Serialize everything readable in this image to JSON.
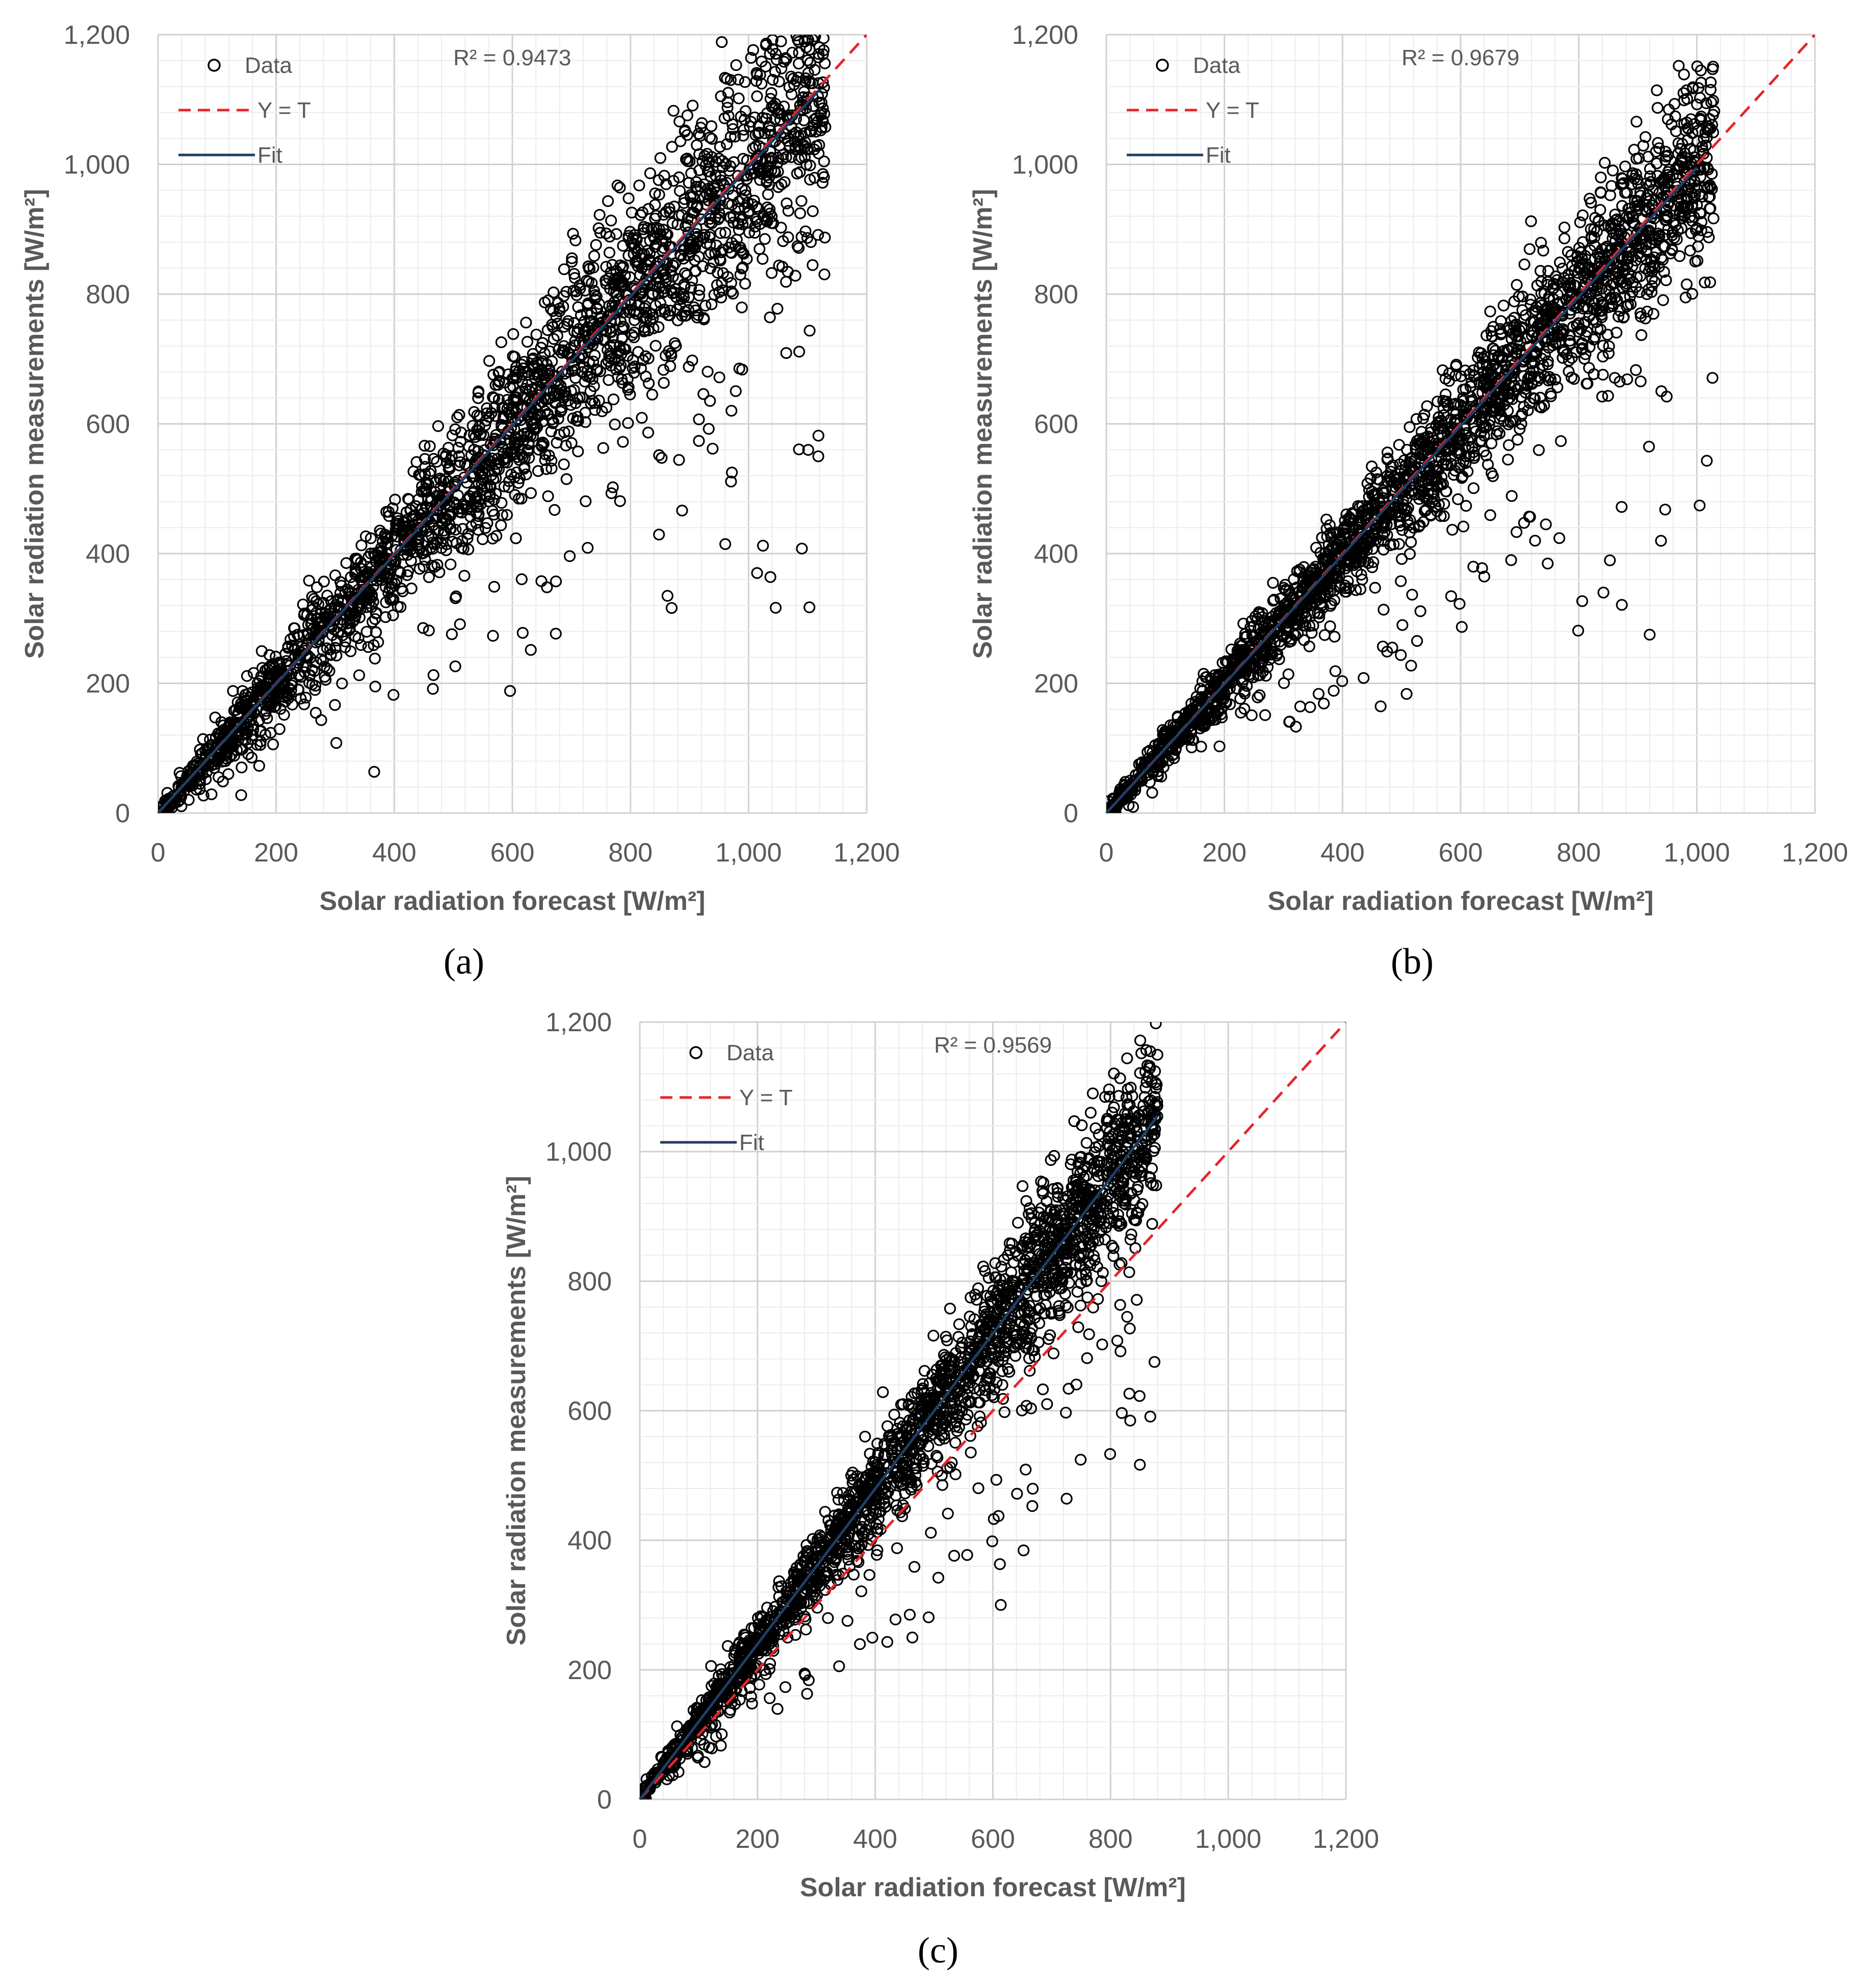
{
  "chart_data": [
    {
      "type": "scatter",
      "panel_label": "(a)",
      "xlabel": "Solar radiation forecast [W/m²]",
      "ylabel": "Solar radiation measurements [W/m²]",
      "xlim": [
        0,
        1200
      ],
      "ylim": [
        0,
        1200
      ],
      "xticks": [
        "0",
        "200",
        "400",
        "600",
        "800",
        "1,000",
        "1,200"
      ],
      "yticks": [
        "0",
        "200",
        "400",
        "600",
        "800",
        "1,000",
        "1,200"
      ],
      "grid": true,
      "legend_position": "top-left",
      "annotation": "R² = 0.9473",
      "series": [
        {
          "name": "Data",
          "marker": "circle-open",
          "color": "#000000",
          "x_max": 1130,
          "spread": 0.16,
          "n": 2400
        },
        {
          "name": "Y = T",
          "style": "dashed",
          "color": "#e3262b",
          "x": [
            0,
            1200
          ],
          "y": [
            0,
            1200
          ]
        },
        {
          "name": "Fit",
          "style": "solid",
          "color": "#1f3f66",
          "x": [
            0,
            1120
          ],
          "y": [
            0,
            1115
          ]
        }
      ]
    },
    {
      "type": "scatter",
      "panel_label": "(b)",
      "xlabel": "Solar radiation forecast [W/m²]",
      "ylabel": "Solar radiation measurements [W/m²]",
      "xlim": [
        0,
        1200
      ],
      "ylim": [
        0,
        1200
      ],
      "xticks": [
        "0",
        "200",
        "400",
        "600",
        "800",
        "1,000",
        "1,200"
      ],
      "yticks": [
        "0",
        "200",
        "400",
        "600",
        "800",
        "1,000",
        "1,200"
      ],
      "grid": true,
      "legend_position": "top-left",
      "annotation": "R² = 0.9679",
      "series": [
        {
          "name": "Data",
          "marker": "circle-open",
          "color": "#000000",
          "x_max": 1030,
          "spread": 0.12,
          "n": 2400
        },
        {
          "name": "Y = T",
          "style": "dashed",
          "color": "#e3262b",
          "x": [
            0,
            1200
          ],
          "y": [
            0,
            1200
          ]
        },
        {
          "name": "Fit",
          "style": "solid",
          "color": "#1f3f66",
          "x": [
            0,
            1000
          ],
          "y": [
            0,
            995
          ]
        }
      ]
    },
    {
      "type": "scatter",
      "panel_label": "(c)",
      "xlabel": "Solar radiation forecast [W/m²]",
      "ylabel": "Solar radiation measurements [W/m²]",
      "xlim": [
        0,
        1200
      ],
      "ylim": [
        0,
        1200
      ],
      "xticks": [
        "0",
        "200",
        "400",
        "600",
        "800",
        "1,000",
        "1,200"
      ],
      "yticks": [
        "0",
        "200",
        "400",
        "600",
        "800",
        "1,000",
        "1,200"
      ],
      "grid": true,
      "legend_position": "top-left",
      "annotation": "R² = 0.9569",
      "series": [
        {
          "name": "Data",
          "marker": "circle-open",
          "color": "#000000",
          "x_max": 880,
          "slope": 1.2,
          "spread": 0.13,
          "n": 2200
        },
        {
          "name": "Y = T",
          "style": "dashed",
          "color": "#e3262b",
          "x": [
            0,
            1200
          ],
          "y": [
            0,
            1200
          ]
        },
        {
          "name": "Fit",
          "style": "solid",
          "color": "#1f3f66",
          "x": [
            0,
            880
          ],
          "y": [
            0,
            1055
          ]
        }
      ]
    }
  ]
}
